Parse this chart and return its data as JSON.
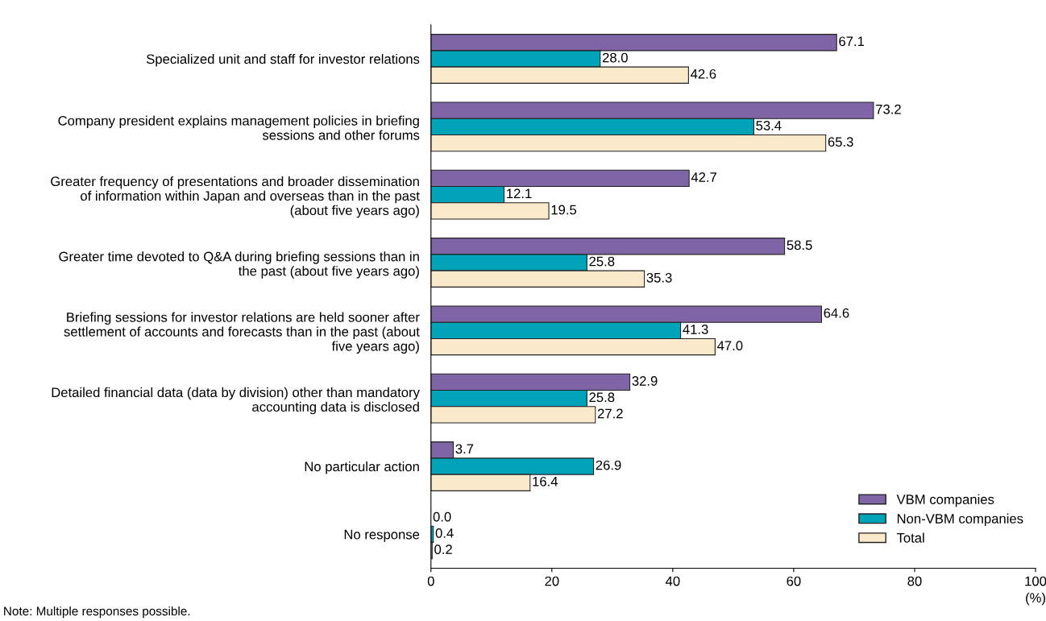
{
  "chart_data": {
    "type": "bar",
    "orientation": "horizontal",
    "xlabel": "(%)",
    "categories": [
      "Specialized unit and staff for investor relations",
      "Company president explains management policies in briefing\nsessions and other forums",
      "Greater frequency of presentations and broader dissemination\nof information within Japan and overseas than in the past\n(about five years ago)",
      "Greater time devoted to Q&A during briefing sessions than in\nthe past (about five years ago)",
      "Briefing sessions for investor relations are held sooner after\nsettlement of accounts and forecasts than in the past (about\nfive years ago)",
      "Detailed financial data (data by division) other than mandatory\naccounting data is disclosed",
      "No particular action",
      "No response"
    ],
    "series": [
      {
        "name": "VBM companies",
        "color": "#7f65a5",
        "values": [
          67.1,
          73.2,
          42.7,
          58.5,
          64.6,
          32.9,
          3.7,
          0.0
        ],
        "value_labels": [
          "67.1",
          "73.2",
          "42.7",
          "58.5",
          "64.6",
          "32.9",
          "3.7",
          "0.0"
        ]
      },
      {
        "name": "Non-VBM companies",
        "color": "#00a3b8",
        "values": [
          28.0,
          53.4,
          12.1,
          25.8,
          41.3,
          25.8,
          26.9,
          0.4
        ],
        "value_labels": [
          "28.0",
          "53.4",
          "12.1",
          "25.8",
          "41.3",
          "25.8",
          "26.9",
          "0.4"
        ]
      },
      {
        "name": "Total",
        "color": "#fbe9cc",
        "values": [
          42.6,
          65.3,
          19.5,
          35.3,
          47.0,
          27.2,
          16.4,
          0.2
        ],
        "value_labels": [
          "42.6",
          "65.3",
          "19.5",
          "35.3",
          "47.0",
          "27.2",
          "16.4",
          "0.2"
        ]
      }
    ],
    "xlim": [
      0,
      100
    ],
    "xticks": [
      0,
      20,
      40,
      60,
      80,
      100
    ],
    "legend": "bottom right",
    "grid": false,
    "annotations": [
      "Note: Multiple responses possible."
    ]
  }
}
